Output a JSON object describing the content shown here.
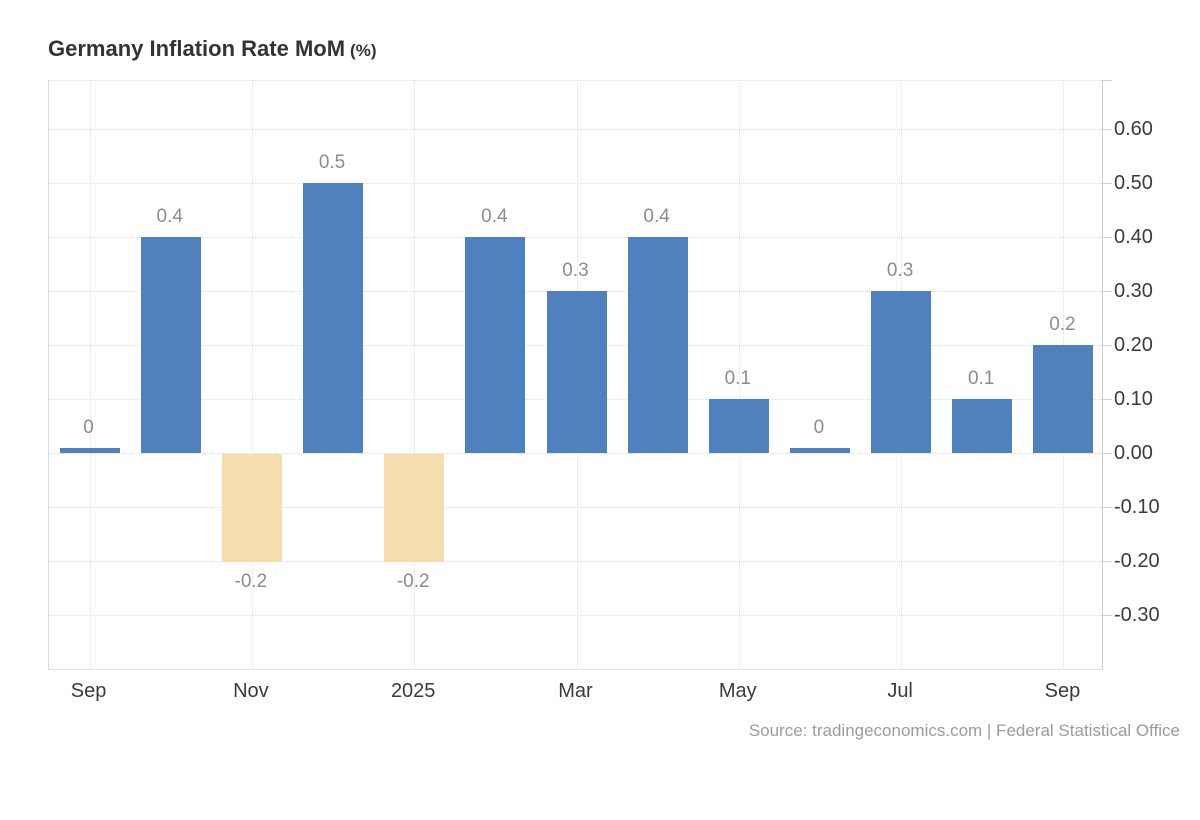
{
  "header": {
    "title": "Germany Inflation Rate MoM",
    "title_suffix": "(%)"
  },
  "source": {
    "text": "Source: tradingeconomics.com | Federal Statistical Office"
  },
  "chart_data": {
    "type": "bar",
    "title": "Germany Inflation Rate MoM (%)",
    "values": [
      0,
      0.4,
      -0.2,
      0.5,
      -0.2,
      0.4,
      0.3,
      0.4,
      0.1,
      0,
      0.3,
      0.1,
      0.2
    ],
    "bar_labels": [
      "0",
      "0.4",
      "-0.2",
      "0.5",
      "-0.2",
      "0.4",
      "0.3",
      "0.4",
      "0.1",
      "0",
      "0.3",
      "0.1",
      "0.2"
    ],
    "x_ticks": [
      {
        "band": 0,
        "label": "Sep"
      },
      {
        "band": 2,
        "label": "Nov"
      },
      {
        "band": 4,
        "label": "2025"
      },
      {
        "band": 6,
        "label": "Mar"
      },
      {
        "band": 8,
        "label": "May"
      },
      {
        "band": 10,
        "label": "Jul"
      },
      {
        "band": 12,
        "label": "Sep"
      }
    ],
    "y_ticks": [
      {
        "value": 0.6,
        "label": "0.60"
      },
      {
        "value": 0.5,
        "label": "0.50"
      },
      {
        "value": 0.4,
        "label": "0.40"
      },
      {
        "value": 0.3,
        "label": "0.30"
      },
      {
        "value": 0.2,
        "label": "0.20"
      },
      {
        "value": 0.1,
        "label": "0.10"
      },
      {
        "value": 0.0,
        "label": "0.00"
      },
      {
        "value": -0.1,
        "label": "-0.10"
      },
      {
        "value": -0.2,
        "label": "-0.20"
      },
      {
        "value": -0.3,
        "label": "-0.30"
      }
    ],
    "ylim": [
      -0.4,
      0.69
    ],
    "grid": "dotted",
    "legend": "none",
    "colors": {
      "positive_bar": "#4e81bd",
      "negative_bar": "#f4deb0",
      "bar_label": "#8c8c8c",
      "axis_text": "#3b3b3b",
      "grid_line": "#dedede",
      "axis_line": "#cccccc",
      "title_text": "#333333",
      "source_text": "#9b9b9b"
    }
  }
}
